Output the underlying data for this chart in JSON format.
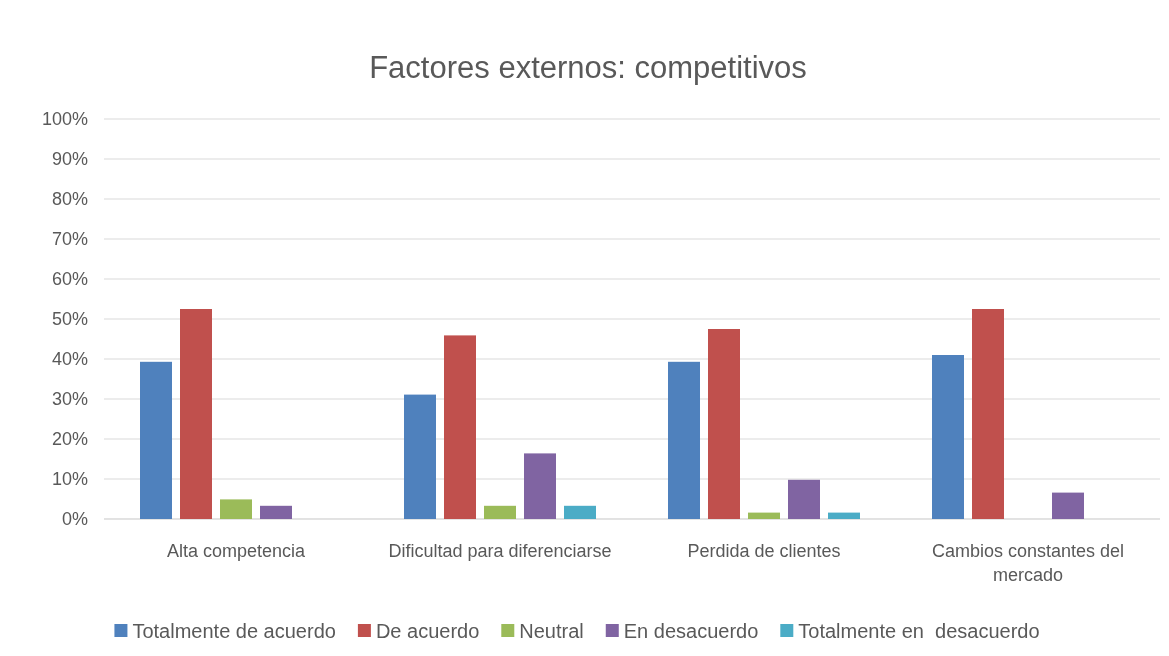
{
  "chart_data": {
    "type": "bar",
    "title": "Factores externos: competitivos",
    "categories": [
      "Alta competencia",
      "Dificultad para diferenciarse",
      "Perdida de clientes",
      "Cambios constantes del mercado"
    ],
    "series": [
      {
        "name": "Totalmente de acuerdo",
        "color": "#4f81bd",
        "values": [
          39.3,
          31.1,
          39.3,
          41.0
        ]
      },
      {
        "name": "De acuerdo",
        "color": "#c0504d",
        "values": [
          52.5,
          45.9,
          47.5,
          52.5
        ]
      },
      {
        "name": "Neutral",
        "color": "#9bbb59",
        "values": [
          4.9,
          3.3,
          1.6,
          0
        ]
      },
      {
        "name": "En desacuerdo",
        "color": "#8064a2",
        "values": [
          3.3,
          16.4,
          9.8,
          6.6
        ]
      },
      {
        "name": "Totalmente en  desacuerdo",
        "color": "#4bacc6",
        "values": [
          0,
          3.3,
          1.6,
          0
        ]
      }
    ],
    "ylim": [
      0,
      100
    ],
    "yticks": [
      {
        "value": 0,
        "label": "0%"
      },
      {
        "value": 10,
        "label": "10%"
      },
      {
        "value": 20,
        "label": "20%"
      },
      {
        "value": 30,
        "label": "30%"
      },
      {
        "value": 40,
        "label": "40%"
      },
      {
        "value": 50,
        "label": "50%"
      },
      {
        "value": 60,
        "label": "60%"
      },
      {
        "value": 70,
        "label": "70%"
      },
      {
        "value": 80,
        "label": "80%"
      },
      {
        "value": 90,
        "label": "90%"
      },
      {
        "value": 100,
        "label": "100%"
      }
    ],
    "grid": "y",
    "legend": "bottom"
  }
}
